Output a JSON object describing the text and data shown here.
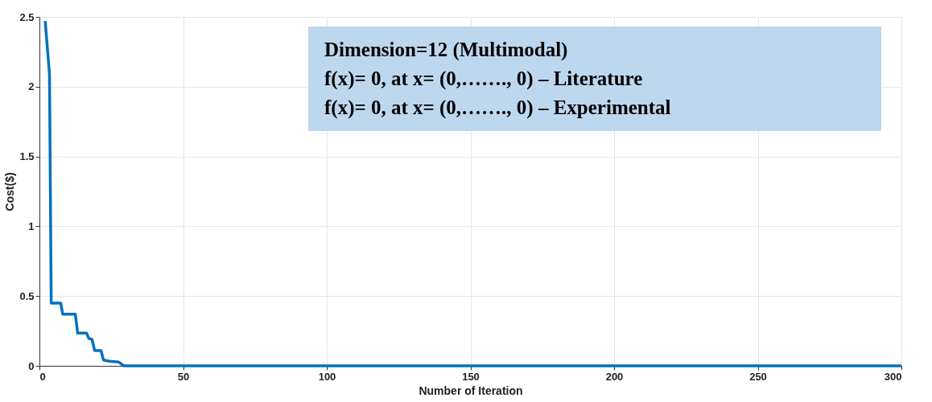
{
  "chart_data": {
    "type": "line",
    "xlabel": "Number of Iteration",
    "ylabel": "Cost($)",
    "annotations": [
      "Dimension=12 (Multimodal)",
      "f(x)= 0, at x= (0,……., 0) – Literature",
      "f(x)= 0, at x= (0,……., 0) – Experimental"
    ],
    "series": [
      {
        "color": "#0072bd",
        "x": [
          2,
          3.5,
          4.1,
          7.4,
          8.1,
          12.5,
          13.3,
          16.4,
          17.2,
          18.3,
          19.2,
          21.4,
          22.3,
          24.2,
          27.5,
          29.4,
          300
        ],
        "values": [
          2.47,
          2.09,
          0.45,
          0.45,
          0.37,
          0.37,
          0.235,
          0.235,
          0.195,
          0.19,
          0.11,
          0.11,
          0.042,
          0.033,
          0.028,
          0,
          0
        ]
      }
    ],
    "xlim": [
      0,
      300
    ],
    "ylim": [
      0,
      2.5
    ],
    "xticks": [
      0,
      50,
      100,
      150,
      200,
      250,
      300
    ],
    "yticks": [
      0,
      0.5,
      1,
      1.5,
      2,
      2.5
    ],
    "grid": true,
    "line_style": "solid",
    "marker": "none"
  }
}
